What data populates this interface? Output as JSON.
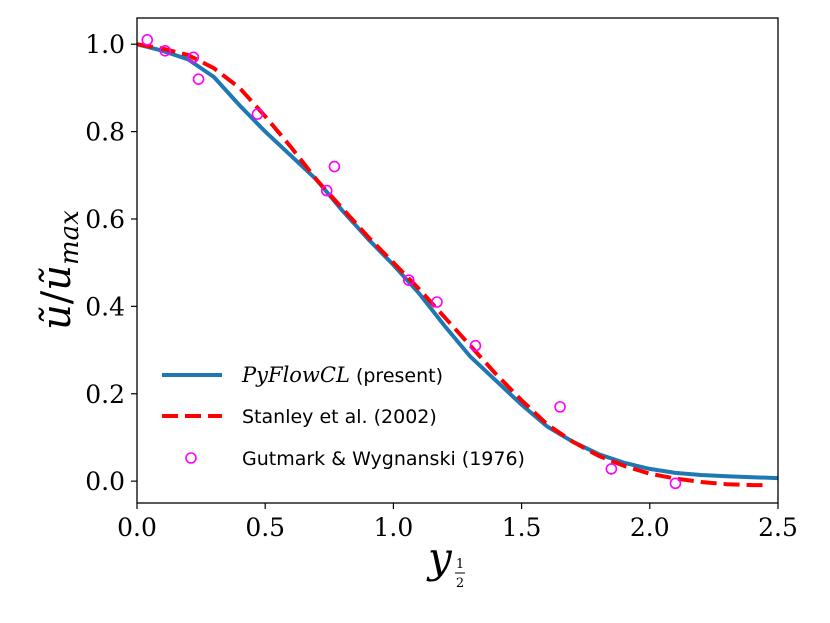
{
  "chart_data": {
    "type": "line",
    "title": "",
    "xlabel": "y",
    "xlabel_sub": "1/2",
    "ylabel_num": "ũ",
    "ylabel_den": "ũ",
    "ylabel_den_sub": "max",
    "xlim": [
      0.0,
      2.5
    ],
    "ylim": [
      -0.05,
      1.06
    ],
    "xticks": [
      0.0,
      0.5,
      1.0,
      1.5,
      2.0,
      2.5
    ],
    "xtick_labels": [
      "0.0",
      "0.5",
      "1.0",
      "1.5",
      "2.0",
      "2.5"
    ],
    "yticks": [
      0.0,
      0.2,
      0.4,
      0.6,
      0.8,
      1.0
    ],
    "ytick_labels": [
      "0.0",
      "0.2",
      "0.4",
      "0.6",
      "0.8",
      "1.0"
    ],
    "grid": false,
    "legend_position": "bottom-left",
    "series": [
      {
        "name_italic": "PyFlowCL",
        "name_rest": " (present)",
        "kind": "line",
        "style": "solid",
        "color": "#1f77b4",
        "x": [
          0.0,
          0.1,
          0.2,
          0.3,
          0.4,
          0.5,
          0.6,
          0.7,
          0.8,
          0.9,
          1.0,
          1.1,
          1.2,
          1.3,
          1.4,
          1.5,
          1.6,
          1.7,
          1.8,
          1.9,
          2.0,
          2.1,
          2.2,
          2.3,
          2.4,
          2.5
        ],
        "values": [
          1.0,
          0.985,
          0.965,
          0.925,
          0.86,
          0.8,
          0.745,
          0.69,
          0.62,
          0.555,
          0.495,
          0.43,
          0.355,
          0.285,
          0.23,
          0.175,
          0.125,
          0.09,
          0.062,
          0.042,
          0.028,
          0.019,
          0.014,
          0.011,
          0.009,
          0.007
        ]
      },
      {
        "name": "Stanley et al. (2002)",
        "kind": "line",
        "style": "dashed",
        "color": "#ff0000",
        "x": [
          0.0,
          0.1,
          0.2,
          0.3,
          0.4,
          0.5,
          0.6,
          0.7,
          0.8,
          0.9,
          1.0,
          1.1,
          1.2,
          1.3,
          1.4,
          1.5,
          1.6,
          1.7,
          1.8,
          1.9,
          2.0,
          2.1,
          2.2,
          2.3,
          2.4,
          2.45
        ],
        "values": [
          1.0,
          0.99,
          0.975,
          0.945,
          0.9,
          0.835,
          0.765,
          0.69,
          0.625,
          0.56,
          0.5,
          0.44,
          0.375,
          0.31,
          0.245,
          0.185,
          0.13,
          0.09,
          0.058,
          0.035,
          0.017,
          0.006,
          -0.002,
          -0.007,
          -0.009,
          -0.009
        ]
      },
      {
        "name": "Gutmark & Wygnanski (1976)",
        "kind": "scatter",
        "marker": "open-circle",
        "color": "#ff00ff",
        "x": [
          0.04,
          0.11,
          0.22,
          0.24,
          0.47,
          0.74,
          0.77,
          1.06,
          1.17,
          1.32,
          1.65,
          1.85,
          2.1
        ],
        "values": [
          1.01,
          0.985,
          0.97,
          0.92,
          0.84,
          0.665,
          0.72,
          0.46,
          0.41,
          0.31,
          0.17,
          0.028,
          -0.005
        ]
      }
    ]
  }
}
